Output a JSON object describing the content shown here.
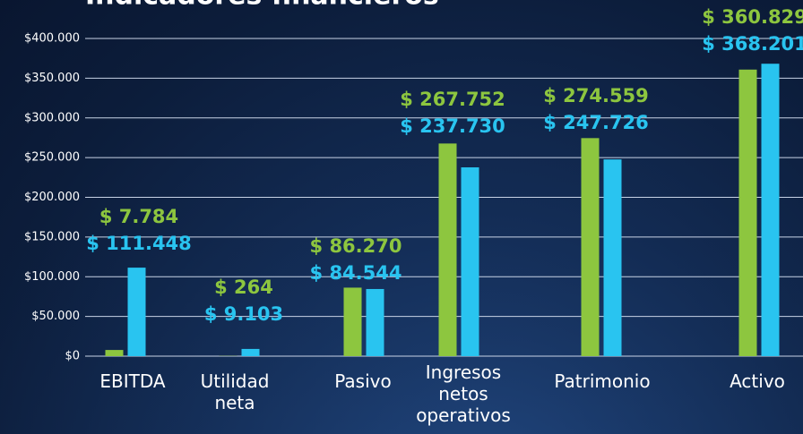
{
  "chart_data": {
    "type": "bar",
    "title": "Indicadores financieros",
    "categories": [
      "EBITDA",
      "Utilidad neta",
      "Pasivo",
      "Ingresos netos operativos",
      "Patrimonio",
      "Activo"
    ],
    "series": [
      {
        "color": "#8dc63f",
        "values": [
          7784,
          264,
          86270,
          267752,
          274559,
          360829
        ],
        "value_labels": [
          "$ 7.784",
          "$ 264",
          "$ 86.270",
          "$ 267.752",
          "$ 274.559",
          "$ 360.829"
        ]
      },
      {
        "color": "#29c4f0",
        "values": [
          111448,
          9103,
          84544,
          237730,
          247726,
          368201
        ],
        "value_labels": [
          "$ 111.448",
          "$ 9.103",
          "$ 84.544",
          "$ 237.730",
          "$ 247.726",
          "$ 368.201"
        ]
      }
    ],
    "ylim": [
      0,
      400000
    ],
    "yticks": [
      {
        "value": 0,
        "label": "$0"
      },
      {
        "value": 50000,
        "label": "$50.000"
      },
      {
        "value": 100000,
        "label": "$100.000"
      },
      {
        "value": 150000,
        "label": "$150.000"
      },
      {
        "value": 200000,
        "label": "$200.000"
      },
      {
        "value": 250000,
        "label": "$250.000"
      },
      {
        "value": 300000,
        "label": "$300.000"
      },
      {
        "value": 350000,
        "label": "$350.000"
      },
      {
        "value": 400000,
        "label": "$400.000"
      }
    ],
    "grid": true
  }
}
